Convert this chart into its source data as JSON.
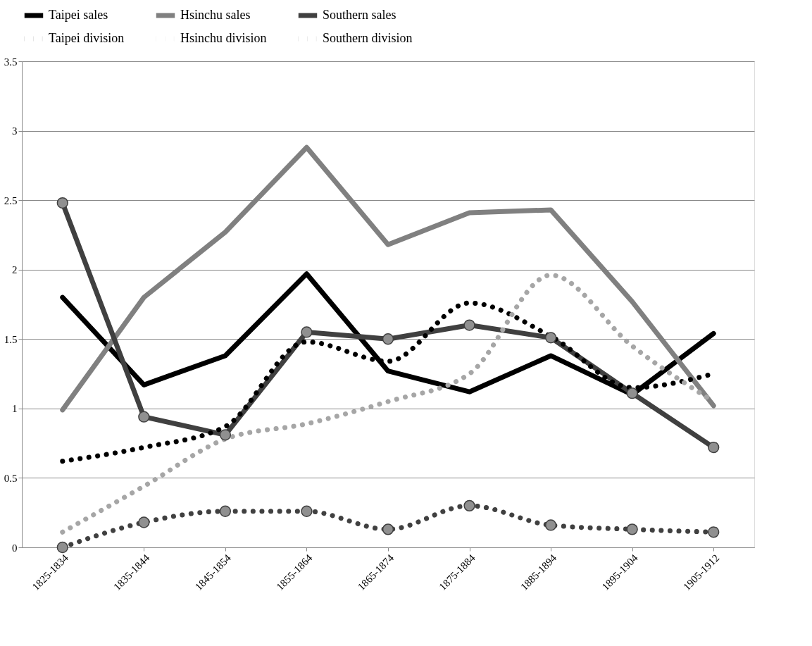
{
  "chart_data": {
    "type": "line",
    "categories": [
      "1825-1834",
      "1835-1844",
      "1845-1854",
      "1855-1864",
      "1865-1874",
      "1875-1884",
      "1885-1894",
      "1895-1904",
      "1905-1912"
    ],
    "series": [
      {
        "name": "Taipei sales",
        "color": "#000000",
        "line_style": "solid",
        "marker": "none",
        "values": [
          1.8,
          1.17,
          1.38,
          1.97,
          1.27,
          1.12,
          1.38,
          1.1,
          1.54
        ]
      },
      {
        "name": "Hsinchu sales",
        "color": "#808080",
        "line_style": "solid",
        "marker": "none",
        "values": [
          0.99,
          1.8,
          2.27,
          2.88,
          2.18,
          2.41,
          2.43,
          1.77,
          1.02
        ]
      },
      {
        "name": "Southern sales",
        "color": "#404040",
        "line_style": "solid",
        "marker": "circle",
        "values": [
          2.48,
          0.94,
          0.81,
          1.55,
          1.5,
          1.6,
          1.51,
          1.11,
          0.72
        ]
      },
      {
        "name": "Taipei division",
        "color": "#000000",
        "line_style": "dotted",
        "marker": "none",
        "values": [
          0.62,
          0.72,
          0.87,
          1.48,
          1.34,
          1.76,
          1.52,
          1.15,
          1.25
        ]
      },
      {
        "name": "Hsinchu division",
        "color": "#a6a6a6",
        "line_style": "dotted",
        "marker": "none",
        "values": [
          0.11,
          0.44,
          0.78,
          0.89,
          1.05,
          1.25,
          1.96,
          1.45,
          1.05
        ]
      },
      {
        "name": "Southern division",
        "color": "#404040",
        "line_style": "dotted",
        "marker": "circle",
        "values": [
          0.0,
          0.18,
          0.26,
          0.26,
          0.13,
          0.3,
          0.16,
          0.13,
          0.11
        ]
      }
    ],
    "ylim": [
      0,
      3.5
    ],
    "yticks": [
      0,
      0.5,
      1,
      1.5,
      2,
      2.5,
      3,
      3.5
    ],
    "grid": "y",
    "legend": "top"
  }
}
